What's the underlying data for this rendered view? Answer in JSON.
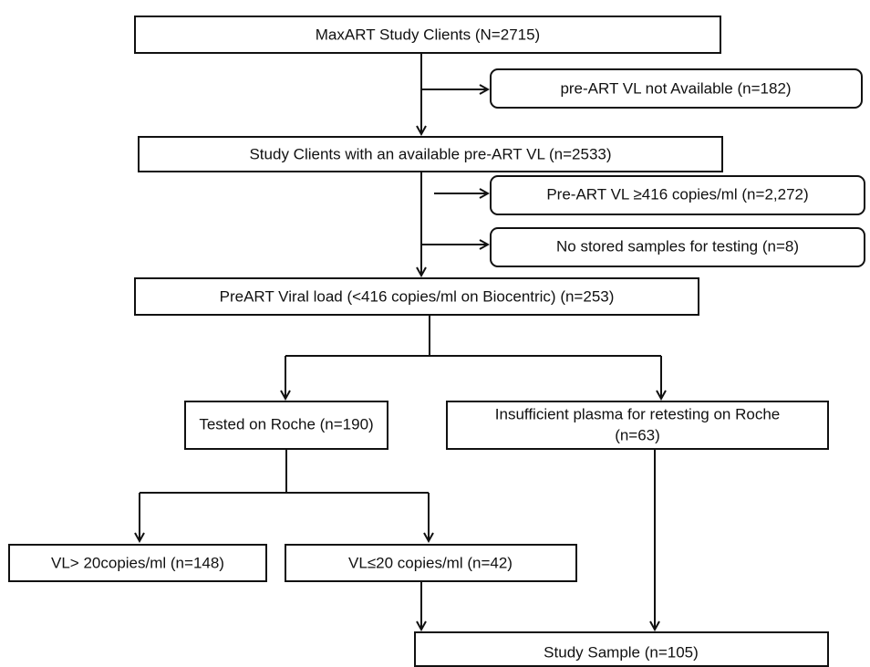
{
  "nodes": [
    {
      "label": "MaxART Study Clients (N=2715)"
    },
    {
      "label": "pre-ART VL not Available (n=182)"
    },
    {
      "label": "Study Clients with an available pre-ART VL (n=2533)"
    },
    {
      "label": "Pre-ART VL ≥416 copies/ml (n=2,272)"
    },
    {
      "label": "No stored samples for testing  (n=8)"
    },
    {
      "label": "PreART Viral load (<416 copies/ml on Biocentric) (n=253)"
    },
    {
      "label": "Tested on Roche (n=190)"
    },
    {
      "lines": [
        "Insufficient plasma for retesting on Roche",
        "(n=63)"
      ]
    },
    {
      "label": "VL> 20copies/ml  (n=148)"
    },
    {
      "label": "VL≤20 copies/ml  (n=42)"
    },
    {
      "label": "Study Sample  (n=105)"
    }
  ]
}
